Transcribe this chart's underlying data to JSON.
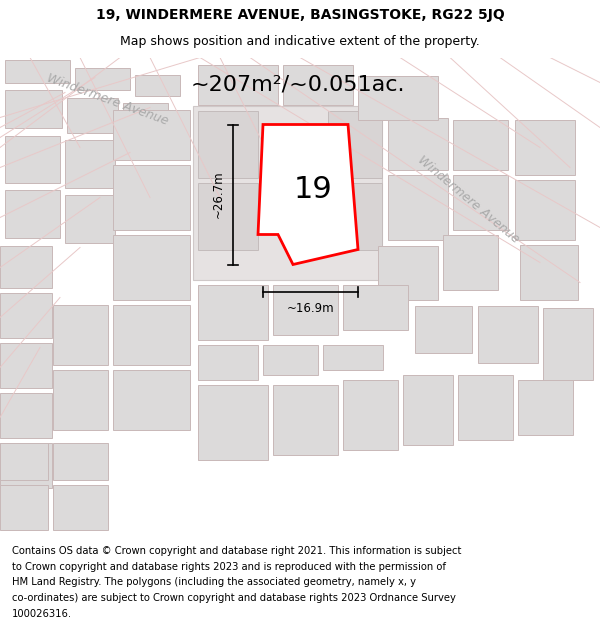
{
  "title_line1": "19, WINDERMERE AVENUE, BASINGSTOKE, RG22 5JQ",
  "title_line2": "Map shows position and indicative extent of the property.",
  "area_text": "~207m²/~0.051ac.",
  "label_number": "19",
  "dim_width": "~16.9m",
  "dim_height": "~26.7m",
  "street_label1": "Windermere Avenue",
  "street_label2": "Windermere Avenue",
  "footer_lines": [
    "Contains OS data © Crown copyright and database right 2021. This information is subject",
    "to Crown copyright and database rights 2023 and is reproduced with the permission of",
    "HM Land Registry. The polygons (including the associated geometry, namely x, y",
    "co-ordinates) are subject to Crown copyright and database rights 2023 Ordnance Survey",
    "100026316."
  ],
  "map_bg": "#f0eeee",
  "block_fill": "#dcdada",
  "block_edge": "#c8b8b8",
  "road_color": "#e8c8c8",
  "highlight_color": "#ff0000",
  "street_label_color": "#aaaaaa",
  "title_fontsize": 10,
  "subtitle_fontsize": 9,
  "footer_fontsize": 7.2,
  "area_fontsize": 16,
  "label_fontsize": 22,
  "dim_fontsize": 8.5,
  "street_fontsize": 9
}
